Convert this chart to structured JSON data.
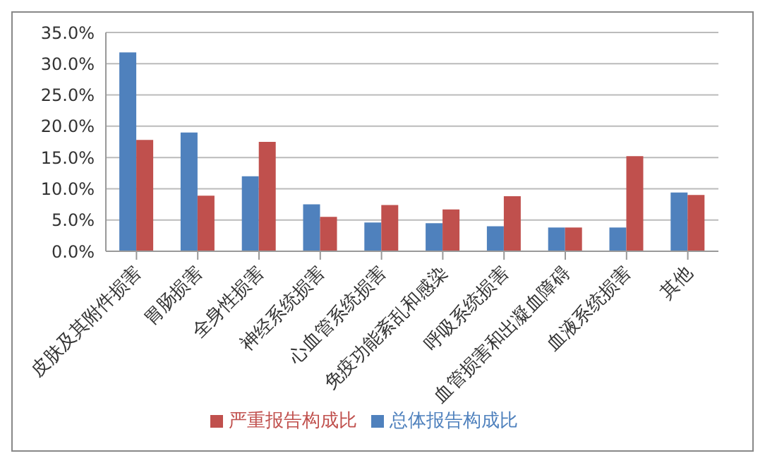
{
  "chart_data": {
    "type": "bar",
    "categories": [
      "皮肤及其附件损害",
      "胃肠损害",
      "全身性损害",
      "神经系统损害",
      "心血管系统损害",
      "免疫功能紊乱和感染",
      "呼吸系统损害",
      "血管损害和出凝血障碍",
      "血液系统损害",
      "其他"
    ],
    "series": [
      {
        "name": "总体报告构成比",
        "color": "#4f81bd",
        "values": [
          31.8,
          19.0,
          12.0,
          7.5,
          4.6,
          4.5,
          4.0,
          3.8,
          3.8,
          9.4
        ]
      },
      {
        "name": "严重报告构成比",
        "color": "#c0504d",
        "values": [
          17.8,
          8.9,
          17.5,
          5.5,
          7.4,
          6.7,
          8.8,
          3.8,
          15.2,
          9.0
        ]
      }
    ],
    "ylim": [
      0,
      35
    ],
    "yticks": [
      {
        "value": 0,
        "label": "0.0%"
      },
      {
        "value": 5,
        "label": "5.0%"
      },
      {
        "value": 10,
        "label": "10.0%"
      },
      {
        "value": 15,
        "label": "15.0%"
      },
      {
        "value": 20,
        "label": "20.0%"
      },
      {
        "value": 25,
        "label": "25.0%"
      },
      {
        "value": 30,
        "label": "30.0%"
      },
      {
        "value": 35,
        "label": "35.0%"
      }
    ],
    "grid": "y",
    "legend": "bottom"
  }
}
